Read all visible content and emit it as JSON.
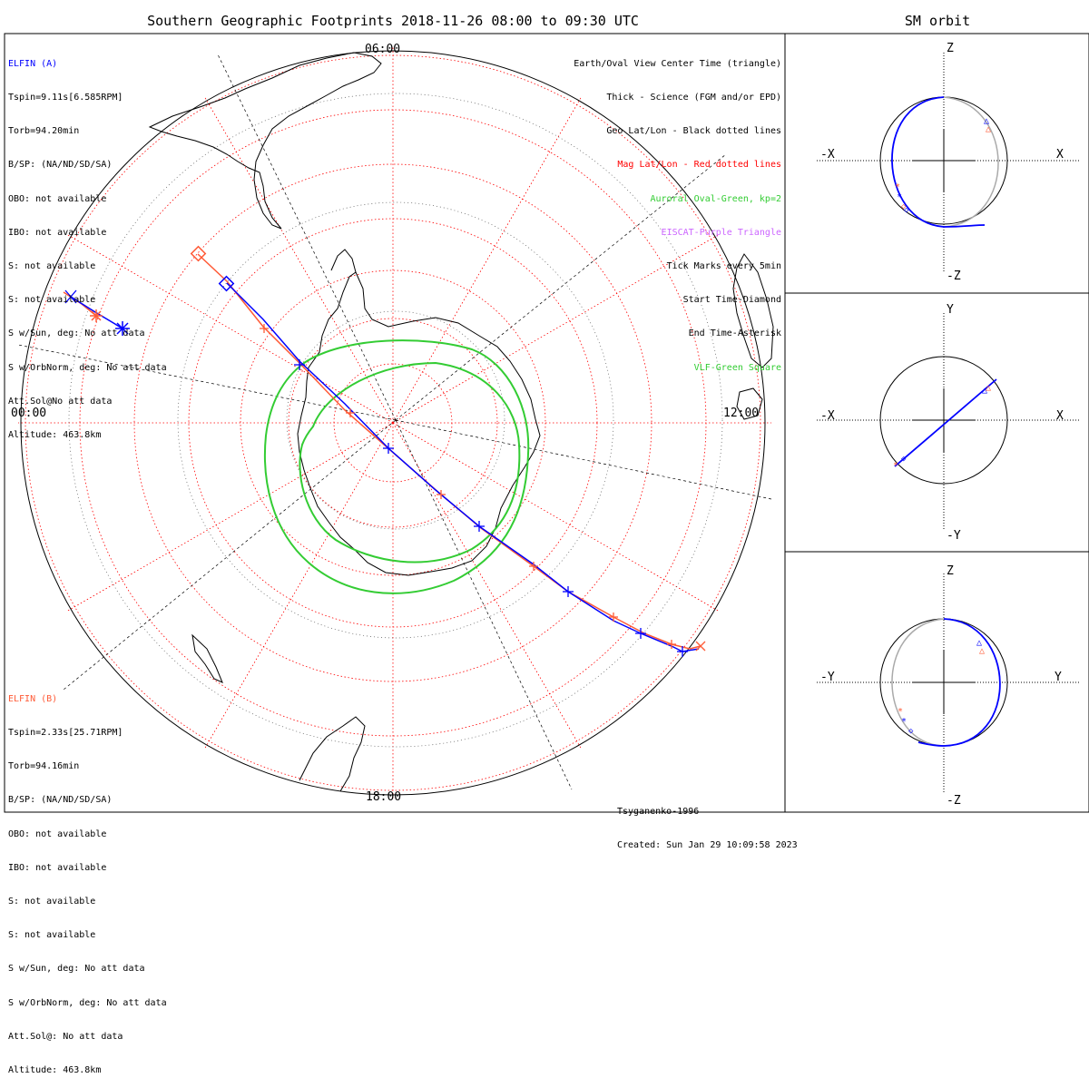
{
  "titles": {
    "main": "Southern Geographic Footprints 2018-11-26 08:00 to 09:30 UTC",
    "sm": "SM orbit"
  },
  "local_time_labels": {
    "top": "06:00",
    "left": "00:00",
    "right": "12:00",
    "bottom": "18:00"
  },
  "elfin_a": {
    "name": "ELFIN (A)",
    "color": "#0000ff",
    "lines": [
      "Tspin=9.11s[6.585RPM]",
      "Torb=94.20min",
      "B/SP: (NA/ND/SD/SA)",
      "OBO: not available",
      "IBO: not available",
      "S: not available",
      "S: not available",
      "S w/Sun, deg: No att data",
      "S w/OrbNorm, deg: No att data",
      "Att.Sol@No att data",
      "Altitude: 463.8km"
    ]
  },
  "elfin_b": {
    "name": "ELFIN (B)",
    "color": "#ff5a36",
    "lines": [
      "Tspin=2.33s[25.71RPM]",
      "Torb=94.16min",
      "B/SP: (NA/ND/SD/SA)",
      "OBO: not available",
      "IBO: not available",
      "S: not available",
      "S: not available",
      "S w/Sun, deg: No att data",
      "S w/OrbNorm, deg: No att data",
      "Att.Sol@: No att data",
      "Altitude: 463.8km"
    ]
  },
  "legend": [
    {
      "text": "Earth/Oval View Center Time (triangle)",
      "color": "#000000"
    },
    {
      "text": "Thick - Science (FGM and/or EPD)",
      "color": "#000000"
    },
    {
      "text": "Geo Lat/Lon - Black dotted lines",
      "color": "#000000"
    },
    {
      "text": "Mag Lat/Lon - Red dotted lines",
      "color": "#ff0000"
    },
    {
      "text": "Auroral Oval-Green, kp=2",
      "color": "#33cc33"
    },
    {
      "text": "EISCAT-Purple Triangle",
      "color": "#cc66ff"
    },
    {
      "text": "Tick Marks every 5min",
      "color": "#000000"
    },
    {
      "text": "Start Time-Diamond",
      "color": "#000000"
    },
    {
      "text": "End Time-Asterisk",
      "color": "#000000"
    },
    {
      "text": "VLF-Green Square",
      "color": "#33cc33"
    }
  ],
  "credits": {
    "model": "Tsyganenko-1996",
    "created": "Created: Sun Jan 29 10:09:58 2023"
  },
  "sm_panels": [
    {
      "left": "-X",
      "right": "X",
      "top": "Z",
      "bottom": "-Z"
    },
    {
      "left": "-X",
      "right": "X",
      "top": "Y",
      "bottom": "-Y"
    },
    {
      "left": "-Y",
      "right": "Y",
      "top": "Z",
      "bottom": "-Z"
    }
  ],
  "colors": {
    "elfin_a": "#0000ff",
    "elfin_b": "#ff5a36",
    "auroral_oval": "#33cc33",
    "mag_grid": "#ff0000",
    "geo_grid": "#000000"
  }
}
